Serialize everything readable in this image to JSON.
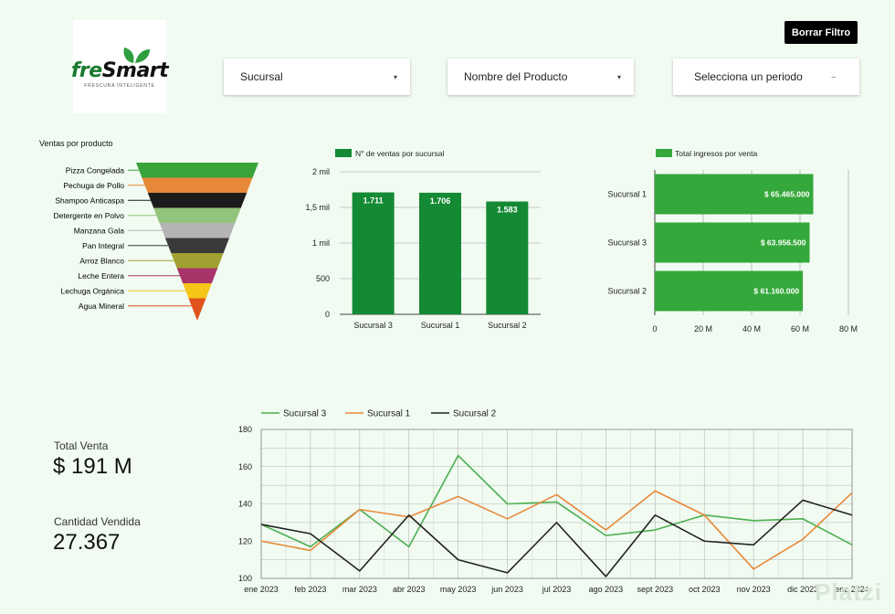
{
  "logo": {
    "brand_a": "fre",
    "brand_b": "Smart",
    "tagline": "FRESCURA INTELIGENTE",
    "leaf_color": "#2e9e3f"
  },
  "filters": {
    "sucursal": "Sucursal",
    "producto": "Nombre del Producto",
    "periodo": "Selecciona un periodo",
    "caret_a": "▾",
    "caret_b": "▾",
    "caret_c": "–"
  },
  "clear_button": "Borrar Filtro",
  "funnel": {
    "title": "Ventas por producto",
    "items": [
      {
        "label": "Pizza Congelada",
        "color": "#3aa33a"
      },
      {
        "label": "Pechuga de Pollo",
        "color": "#e8893a"
      },
      {
        "label": "Shampoo Anticaspa",
        "color": "#1c1c1c"
      },
      {
        "label": "Detergente en Polvo",
        "color": "#93c47d"
      },
      {
        "label": "Manzana Gala",
        "color": "#b4b4b4"
      },
      {
        "label": "Pan Integral",
        "color": "#3a3a3a"
      },
      {
        "label": "Arroz Blanco",
        "color": "#a1a132"
      },
      {
        "label": "Leche Entera",
        "color": "#a8346a"
      },
      {
        "label": "Lechuga Orgánica",
        "color": "#f5c518"
      },
      {
        "label": "Agua Mineral",
        "color": "#e0521c"
      }
    ]
  },
  "bar_chart": {
    "legend": "N° de ventas por sucursal",
    "color": "#148a35",
    "y_ticks": [
      "2 mil",
      "1,5 mil",
      "1 mil",
      "500",
      "0"
    ]
  },
  "hbar_chart": {
    "legend": "Total ingresos por venta",
    "color": "#34a83a",
    "x_ticks": [
      "0",
      "20 M",
      "40 M",
      "60 M",
      "80 M"
    ]
  },
  "kpis": {
    "total_label": "Total Venta",
    "total_value": "$ 191 M",
    "qty_label": "Cantidad Vendida",
    "qty_value": "27.367"
  },
  "watermark": "Platzi",
  "chart_data": [
    {
      "type": "bar",
      "categories": [
        "Sucursal 3",
        "Sucursal 1",
        "Sucursal 2"
      ],
      "series": [
        {
          "name": "N° de ventas por sucursal",
          "values": [
            1711,
            1706,
            1583
          ]
        }
      ],
      "data_labels": [
        "1.711",
        "1.706",
        "1.583"
      ],
      "ylim": [
        0,
        2000
      ],
      "y_ticks": [
        0,
        500,
        1000,
        1500,
        2000
      ],
      "legend": "top"
    },
    {
      "type": "bar",
      "orientation": "horizontal",
      "categories": [
        "Sucursal 1",
        "Sucursal 3",
        "Sucursal 2"
      ],
      "series": [
        {
          "name": "Total ingresos por venta",
          "values": [
            65465000,
            63956500,
            61160000
          ]
        }
      ],
      "data_labels": [
        "$ 65.465.000",
        "$ 63.956.500",
        "$ 61.160.000"
      ],
      "xlim": [
        0,
        80000000
      ],
      "x_ticks": [
        0,
        20000000,
        40000000,
        60000000,
        80000000
      ],
      "legend": "top"
    },
    {
      "type": "line",
      "x": [
        "ene 2023",
        "feb 2023",
        "mar 2023",
        "abr 2023",
        "may 2023",
        "jun 2023",
        "jul 2023",
        "ago 2023",
        "sept 2023",
        "oct 2023",
        "nov 2023",
        "dic 2023",
        "ene 2024"
      ],
      "series": [
        {
          "name": "Sucursal 3",
          "color": "#4caf50",
          "values": [
            129,
            117,
            137,
            117,
            166,
            140,
            141,
            123,
            126,
            134,
            131,
            132,
            118
          ]
        },
        {
          "name": "Sucursal 1",
          "color": "#e8893a",
          "values": [
            120,
            115,
            137,
            133,
            144,
            132,
            145,
            126,
            147,
            134,
            105,
            121,
            146
          ]
        },
        {
          "name": "Sucursal 2",
          "color": "#222222",
          "values": [
            129,
            124,
            104,
            134,
            110,
            103,
            130,
            101,
            134,
            120,
            118,
            142,
            134
          ]
        }
      ],
      "ylim": [
        100,
        180
      ],
      "y_ticks": [
        100,
        120,
        140,
        160,
        180
      ],
      "grid": true,
      "legend": "top"
    }
  ]
}
